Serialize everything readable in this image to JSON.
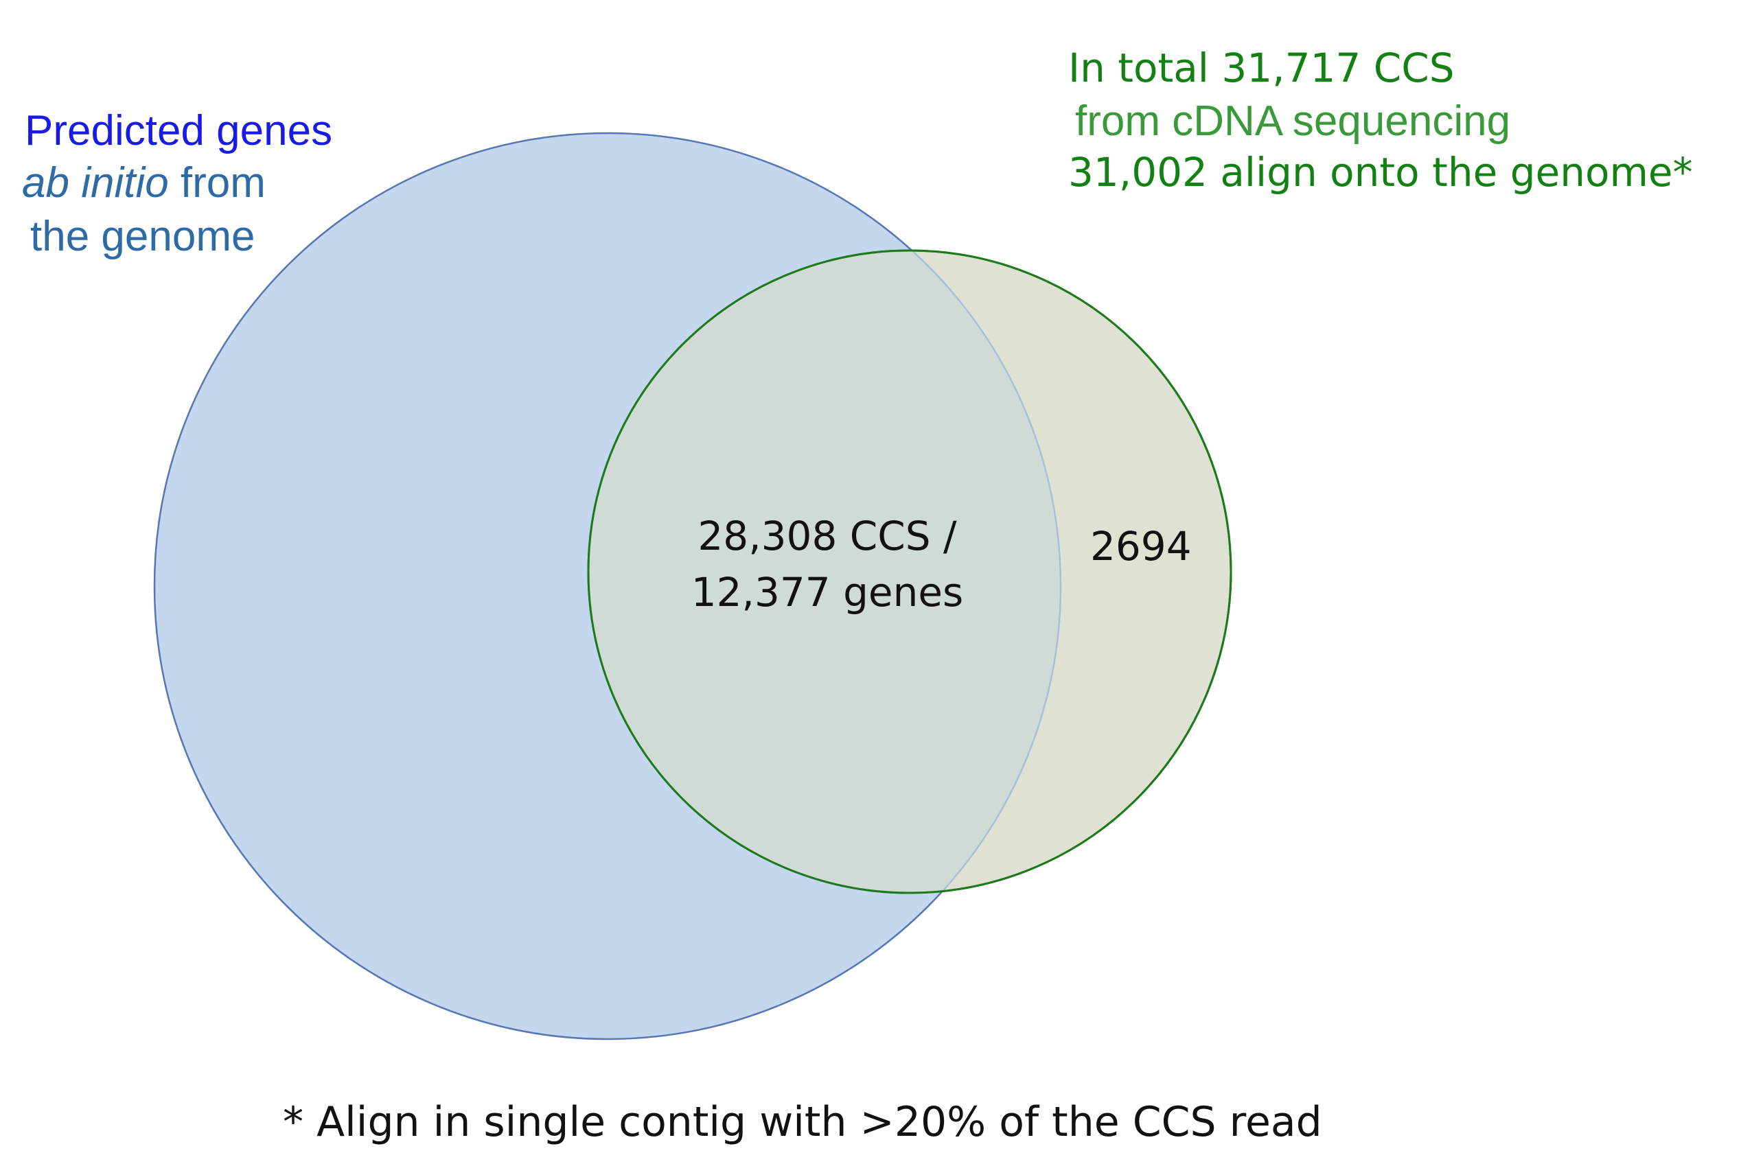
{
  "venn": {
    "left_set": {
      "line1": "Predicted genes",
      "line2_italic": "ab initio",
      "line2_rest": " from",
      "line3": "the genome",
      "fill": "#c5d7ef",
      "stroke": "#5677b3"
    },
    "right_set": {
      "line1": "In total 31,717 CCS",
      "line2": "from cDNA sequencing",
      "line3": "31,002 align onto the genome*",
      "fill": "#dfe2d2",
      "stroke": "#1c7a1c"
    },
    "intersection": {
      "line1": "28,308 CCS /",
      "line2": "12,377 genes",
      "fill": "#d0dbd5"
    },
    "right_only": {
      "value": "2694"
    }
  },
  "footnote": "* Align in single contig with >20% of the CCS read"
}
